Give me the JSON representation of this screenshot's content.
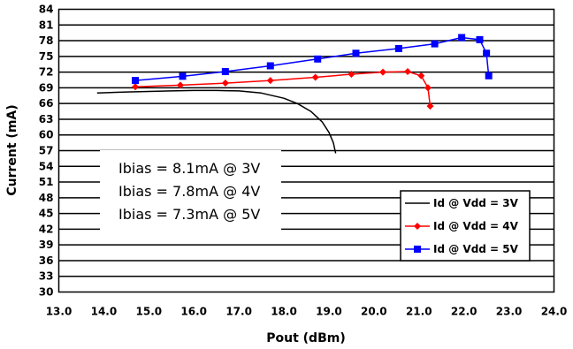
{
  "chart_data": {
    "type": "line",
    "title": "",
    "xlabel": "Pout (dBm)",
    "ylabel": "Current (mA)",
    "xlim": [
      13.0,
      24.0
    ],
    "ylim": [
      30,
      84
    ],
    "xticks": [
      "13.0",
      "14.0",
      "15.0",
      "16.0",
      "17.0",
      "18.0",
      "19.0",
      "20.0",
      "21.0",
      "22.0",
      "23.0",
      "24.0"
    ],
    "yticks": [
      "30",
      "33",
      "36",
      "39",
      "42",
      "45",
      "48",
      "51",
      "54",
      "57",
      "60",
      "63",
      "66",
      "69",
      "72",
      "75",
      "78",
      "81",
      "84"
    ],
    "grid": "horizontal",
    "legend_position": "bottom-right",
    "annotations": [
      "Ibias = 8.1mA @ 3V",
      "Ibias = 7.8mA @ 4V",
      "Ibias = 7.3mA @ 5V"
    ],
    "series": [
      {
        "name": "Id @ Vdd = 3V",
        "color": "#000000",
        "marker": "none",
        "points": [
          [
            13.85,
            68.0
          ],
          [
            14.5,
            68.2
          ],
          [
            15.0,
            68.3
          ],
          [
            15.5,
            68.4
          ],
          [
            16.0,
            68.5
          ],
          [
            16.5,
            68.5
          ],
          [
            17.0,
            68.4
          ],
          [
            17.5,
            68.0
          ],
          [
            18.0,
            67.0
          ],
          [
            18.3,
            66.0
          ],
          [
            18.6,
            64.5
          ],
          [
            18.85,
            62.5
          ],
          [
            19.0,
            60.5
          ],
          [
            19.1,
            58.5
          ],
          [
            19.15,
            56.5
          ]
        ]
      },
      {
        "name": "Id @ Vdd = 4V",
        "color": "#ff0000",
        "marker": "diamond",
        "points": [
          [
            14.7,
            69.2
          ],
          [
            15.7,
            69.5
          ],
          [
            16.7,
            69.9
          ],
          [
            17.7,
            70.4
          ],
          [
            18.7,
            71.0
          ],
          [
            19.5,
            71.6
          ],
          [
            20.2,
            72.0
          ],
          [
            20.75,
            72.1
          ],
          [
            21.05,
            71.3
          ],
          [
            21.2,
            69.0
          ],
          [
            21.25,
            65.5
          ]
        ]
      },
      {
        "name": "Id @ Vdd = 5V",
        "color": "#0000ff",
        "marker": "square",
        "points": [
          [
            14.7,
            70.4
          ],
          [
            15.75,
            71.2
          ],
          [
            16.7,
            72.1
          ],
          [
            17.7,
            73.2
          ],
          [
            18.75,
            74.5
          ],
          [
            19.6,
            75.6
          ],
          [
            20.55,
            76.5
          ],
          [
            21.35,
            77.4
          ],
          [
            21.95,
            78.6
          ],
          [
            22.35,
            78.2
          ],
          [
            22.5,
            75.6
          ],
          [
            22.55,
            71.3
          ]
        ]
      }
    ]
  }
}
